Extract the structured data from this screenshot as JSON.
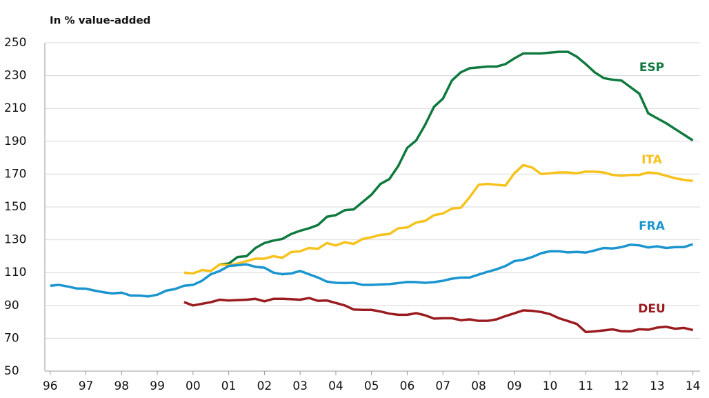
{
  "chart_data": {
    "type": "line",
    "ylabel": "In % value-added",
    "x": [
      1996,
      1996.25,
      1996.5,
      1996.75,
      1997,
      1997.25,
      1997.5,
      1997.75,
      1998,
      1998.25,
      1998.5,
      1998.75,
      1999,
      1999.25,
      1999.5,
      1999.75,
      2000,
      2000.25,
      2000.5,
      2000.75,
      2001,
      2001.25,
      2001.5,
      2001.75,
      2002,
      2002.25,
      2002.5,
      2002.75,
      2003,
      2003.25,
      2003.5,
      2003.75,
      2004,
      2004.25,
      2004.5,
      2004.75,
      2005,
      2005.25,
      2005.5,
      2005.75,
      2006,
      2006.25,
      2006.5,
      2006.75,
      2007,
      2007.25,
      2007.5,
      2007.75,
      2008,
      2008.25,
      2008.5,
      2008.75,
      2009,
      2009.25,
      2009.5,
      2009.75,
      2010,
      2010.25,
      2010.5,
      2010.75,
      2011,
      2011.25,
      2011.5,
      2011.75,
      2012,
      2012.25,
      2012.5,
      2012.75,
      2013,
      2013.25,
      2013.5,
      2013.75,
      2014
    ],
    "series": [
      {
        "name": "ESP",
        "color": "#0e7a3e",
        "values": [
          null,
          null,
          null,
          null,
          null,
          null,
          null,
          null,
          null,
          null,
          null,
          null,
          null,
          null,
          null,
          null,
          null,
          null,
          null,
          115,
          115.5,
          119.5,
          120,
          125,
          128,
          129.5,
          130.5,
          133.5,
          135.5,
          137,
          139,
          144,
          145,
          148,
          148.5,
          153,
          157.5,
          164,
          167,
          175,
          186,
          190.5,
          200,
          211,
          216,
          227,
          232,
          234.5,
          235,
          235.5,
          235.5,
          237,
          240.5,
          243.5,
          243.5,
          243.5,
          244,
          244.5,
          244.5,
          241.5,
          237,
          232,
          228.5,
          227.5,
          227,
          223,
          219,
          207,
          204,
          201,
          197.5,
          194,
          190.5
        ]
      },
      {
        "name": "ITA",
        "color": "#f7c21c",
        "values": [
          null,
          null,
          null,
          null,
          null,
          null,
          null,
          null,
          null,
          null,
          null,
          null,
          null,
          null,
          null,
          110,
          109.5,
          111.5,
          111,
          115,
          114.5,
          115.5,
          117,
          118.5,
          118.5,
          120,
          119,
          122.5,
          123,
          125,
          124.5,
          128,
          126.5,
          128.5,
          127.5,
          130.5,
          131.5,
          133,
          133.5,
          137,
          137.5,
          140.5,
          141.5,
          145,
          146,
          149,
          149.5,
          156,
          163.5,
          164,
          163.5,
          163,
          170.5,
          175.5,
          174,
          170,
          170.5,
          171,
          171,
          170.5,
          171.5,
          171.5,
          171,
          169.5,
          169,
          169.5,
          169.5,
          171,
          170.5,
          169,
          167.5,
          166.5,
          165.8
        ]
      },
      {
        "name": "FRA",
        "color": "#1a95d0",
        "values": [
          102,
          102.5,
          101.5,
          100.3,
          100.2,
          99,
          98,
          97.3,
          97.8,
          96,
          96,
          95.5,
          96.5,
          99,
          100,
          102,
          102.5,
          105,
          109,
          111,
          114,
          114.5,
          115,
          113.5,
          113,
          110,
          109,
          109.5,
          111,
          109,
          107,
          104.5,
          103.8,
          103.6,
          103.8,
          102.5,
          102.5,
          102.8,
          103,
          103.6,
          104.3,
          104.2,
          103.8,
          104.2,
          105,
          106.3,
          107,
          107,
          108.8,
          110.5,
          112,
          114,
          117,
          117.8,
          119.5,
          121.8,
          123,
          123,
          122.3,
          122.6,
          122.2,
          123.5,
          125,
          124.7,
          125.5,
          127,
          126.6,
          125.3,
          126,
          125,
          125.5,
          125.5,
          127.3
        ]
      },
      {
        "name": "DEU",
        "color": "#9b1c20",
        "values": [
          null,
          null,
          null,
          null,
          null,
          null,
          null,
          null,
          null,
          null,
          null,
          null,
          null,
          null,
          null,
          92,
          90,
          91,
          92,
          93.5,
          93,
          93.3,
          93.5,
          94,
          92.5,
          94,
          94,
          93.8,
          93.5,
          94.5,
          92.8,
          93,
          91.5,
          90,
          87.5,
          87.3,
          87.3,
          86.3,
          85,
          84.3,
          84.3,
          85.3,
          84,
          82,
          82.2,
          82.2,
          81,
          81.5,
          80.6,
          80.6,
          81.5,
          83.5,
          85.2,
          87,
          86.7,
          86,
          84.7,
          82.2,
          80.5,
          78.7,
          73.8,
          74.2,
          74.8,
          75.4,
          74.3,
          74.2,
          75.5,
          75.2,
          76.5,
          77,
          75.8,
          76.3,
          75
        ]
      }
    ],
    "xlim": [
      1995.85,
      2014.2
    ],
    "xticks": [
      {
        "value": 1996,
        "label": "96"
      },
      {
        "value": 1997,
        "label": "97"
      },
      {
        "value": 1998,
        "label": "98"
      },
      {
        "value": 1999,
        "label": "99"
      },
      {
        "value": 2000,
        "label": "00"
      },
      {
        "value": 2001,
        "label": "01"
      },
      {
        "value": 2002,
        "label": "02"
      },
      {
        "value": 2003,
        "label": "03"
      },
      {
        "value": 2004,
        "label": "04"
      },
      {
        "value": 2005,
        "label": "05"
      },
      {
        "value": 2006,
        "label": "06"
      },
      {
        "value": 2007,
        "label": "07"
      },
      {
        "value": 2008,
        "label": "08"
      },
      {
        "value": 2009,
        "label": "09"
      },
      {
        "value": 2010,
        "label": "10"
      },
      {
        "value": 2011,
        "label": "11"
      },
      {
        "value": 2012,
        "label": "12"
      },
      {
        "value": 2013,
        "label": "13"
      },
      {
        "value": 2014,
        "label": "14"
      }
    ],
    "ylim": [
      50,
      250
    ],
    "yticks": [
      50,
      70,
      90,
      110,
      130,
      150,
      170,
      190,
      210,
      230,
      250
    ],
    "grid": true
  }
}
